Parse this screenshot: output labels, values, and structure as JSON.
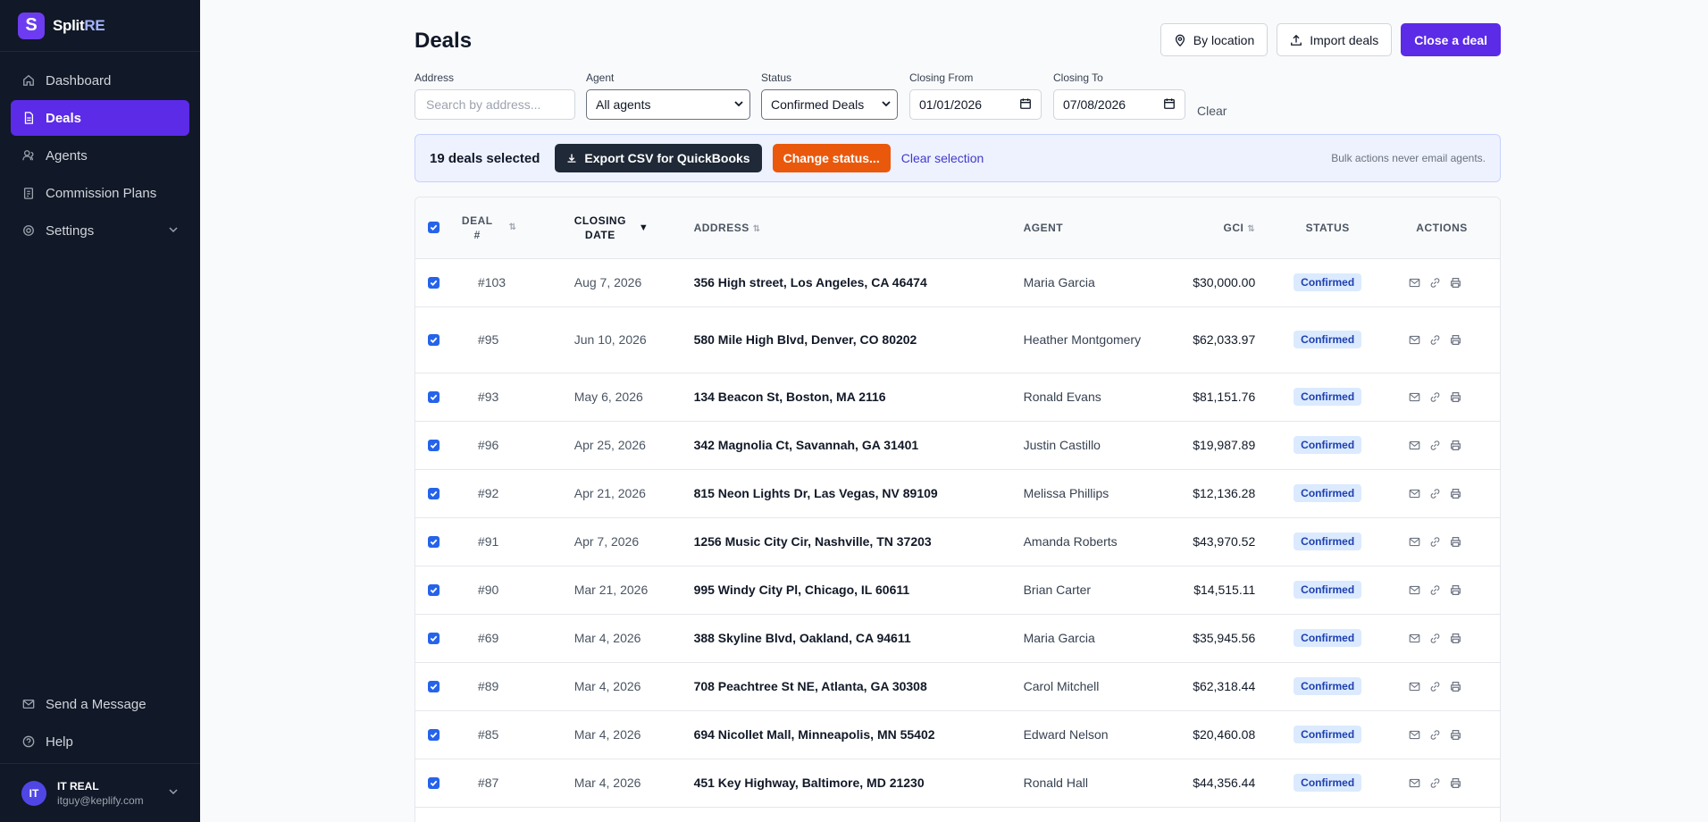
{
  "brand": {
    "logo_letter": "S",
    "name_main": "Split",
    "name_accent": "RE"
  },
  "sidebar": {
    "items": [
      {
        "label": "Dashboard",
        "icon": "home-icon"
      },
      {
        "label": "Deals",
        "icon": "document-icon",
        "active": true
      },
      {
        "label": "Agents",
        "icon": "users-icon"
      },
      {
        "label": "Commission Plans",
        "icon": "clipboard-icon"
      },
      {
        "label": "Settings",
        "icon": "gear-icon"
      }
    ],
    "bottom_items": [
      {
        "label": "Send a Message",
        "icon": "mail-icon"
      },
      {
        "label": "Help",
        "icon": "help-icon"
      }
    ],
    "user": {
      "initials": "IT",
      "name": "IT REAL",
      "email": "itguy@keplify.com"
    }
  },
  "header": {
    "title": "Deals",
    "by_location": "By location",
    "import": "Import deals",
    "close_deal": "Close a deal"
  },
  "filters": {
    "address_label": "Address",
    "address_placeholder": "Search by address...",
    "agent_label": "Agent",
    "agent_value": "All agents",
    "status_label": "Status",
    "status_value": "Confirmed Deals",
    "from_label": "Closing From",
    "from_value": "01/01/2026",
    "to_label": "Closing To",
    "to_value": "07/08/2026",
    "clear": "Clear"
  },
  "bulk": {
    "count": "19 deals selected",
    "export": "Export CSV for QuickBooks",
    "change_status": "Change status...",
    "clear_selection": "Clear selection",
    "note": "Bulk actions never email agents."
  },
  "table": {
    "headers": {
      "deal_line1": "Deal",
      "deal_line2": "#",
      "closing_line1": "Closing",
      "closing_line2": "Date",
      "address": "Address",
      "agent": "Agent",
      "gci": "GCI",
      "status": "Status",
      "actions": "Actions"
    },
    "rows": [
      {
        "deal": "#103",
        "date": "Aug 7, 2026",
        "address": "356 High street, Los Angeles, CA 46474",
        "agent": "Maria Garcia",
        "gci": "$30,000.00",
        "status": "Confirmed"
      },
      {
        "deal": "#95",
        "date": "Jun 10, 2026",
        "address": "580 Mile High Blvd, Denver, CO 80202",
        "agent": "Heather Montgomery",
        "gci": "$62,033.97",
        "status": "Confirmed"
      },
      {
        "deal": "#93",
        "date": "May 6, 2026",
        "address": "134 Beacon St, Boston, MA 2116",
        "agent": "Ronald Evans",
        "gci": "$81,151.76",
        "status": "Confirmed"
      },
      {
        "deal": "#96",
        "date": "Apr 25, 2026",
        "address": "342 Magnolia Ct, Savannah, GA 31401",
        "agent": "Justin Castillo",
        "gci": "$19,987.89",
        "status": "Confirmed"
      },
      {
        "deal": "#92",
        "date": "Apr 21, 2026",
        "address": "815 Neon Lights Dr, Las Vegas, NV 89109",
        "agent": "Melissa Phillips",
        "gci": "$12,136.28",
        "status": "Confirmed"
      },
      {
        "deal": "#91",
        "date": "Apr 7, 2026",
        "address": "1256 Music City Cir, Nashville, TN 37203",
        "agent": "Amanda Roberts",
        "gci": "$43,970.52",
        "status": "Confirmed"
      },
      {
        "deal": "#90",
        "date": "Mar 21, 2026",
        "address": "995 Windy City Pl, Chicago, IL 60611",
        "agent": "Brian Carter",
        "gci": "$14,515.11",
        "status": "Confirmed"
      },
      {
        "deal": "#69",
        "date": "Mar 4, 2026",
        "address": "388 Skyline Blvd, Oakland, CA 94611",
        "agent": "Maria Garcia",
        "gci": "$35,945.56",
        "status": "Confirmed"
      },
      {
        "deal": "#89",
        "date": "Mar 4, 2026",
        "address": "708 Peachtree St NE, Atlanta, GA 30308",
        "agent": "Carol Mitchell",
        "gci": "$62,318.44",
        "status": "Confirmed"
      },
      {
        "deal": "#85",
        "date": "Mar 4, 2026",
        "address": "694 Nicollet Mall, Minneapolis, MN 55402",
        "agent": "Edward Nelson",
        "gci": "$20,460.08",
        "status": "Confirmed"
      },
      {
        "deal": "#87",
        "date": "Mar 4, 2026",
        "address": "451 Key Highway, Baltimore, MD 21230",
        "agent": "Ronald Hall",
        "gci": "$44,356.44",
        "status": "Confirmed"
      }
    ]
  },
  "colors": {
    "accent": "#5b2be8",
    "sidebar_bg": "#111827",
    "badge_bg": "#dbeafe",
    "badge_text": "#1e40af",
    "orange": "#ea580c"
  }
}
